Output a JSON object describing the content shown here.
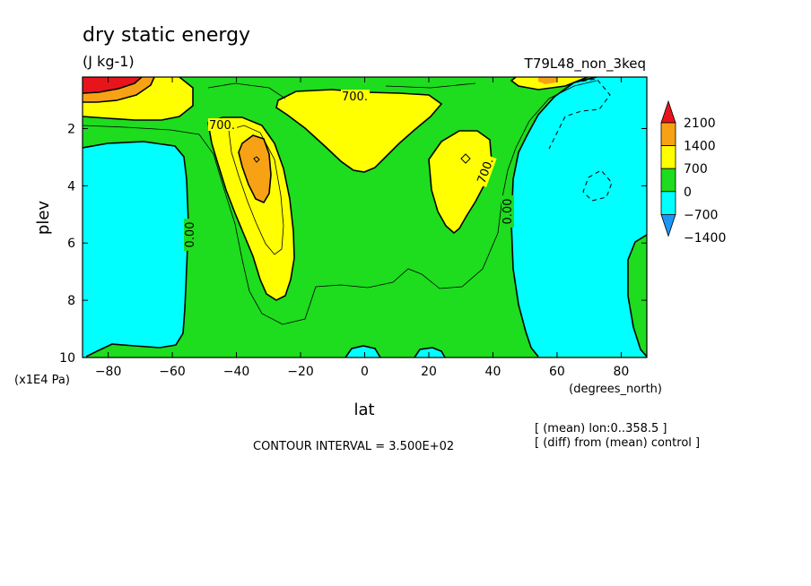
{
  "chart_data": {
    "type": "contour",
    "title": "dry static energy",
    "units": "(J kg-1)",
    "run_label": "T79L48_non_3keq",
    "xlabel": "lat",
    "x_units": "(degrees_north)",
    "ylabel": "plev",
    "y_units": "(x1E4 Pa)",
    "x_ticks": [
      "-80",
      "-60",
      "-40",
      "-20",
      "0",
      "20",
      "40",
      "60",
      "80"
    ],
    "y_ticks": [
      "2",
      "4",
      "6",
      "8",
      "10"
    ],
    "xlim": [
      -88,
      88
    ],
    "ylim": [
      10,
      0.2
    ],
    "contour_interval_text": "CONTOUR INTERVAL = 3.500E+02",
    "notes": [
      "[ (mean) lon:0..358.5 ]",
      "[ (diff) from (mean) control ]"
    ],
    "contour_labels": [
      "0.00",
      "0.00",
      "700.",
      "700.",
      "700."
    ],
    "colorbar": {
      "labels": [
        "2100",
        "1400",
        "700",
        "0",
        "-700",
        "-1400"
      ],
      "colors": [
        "#e8141c",
        "#f7a214",
        "#ffff00",
        "#1edc1e",
        "#00ffff",
        "#1e96f5"
      ]
    }
  }
}
